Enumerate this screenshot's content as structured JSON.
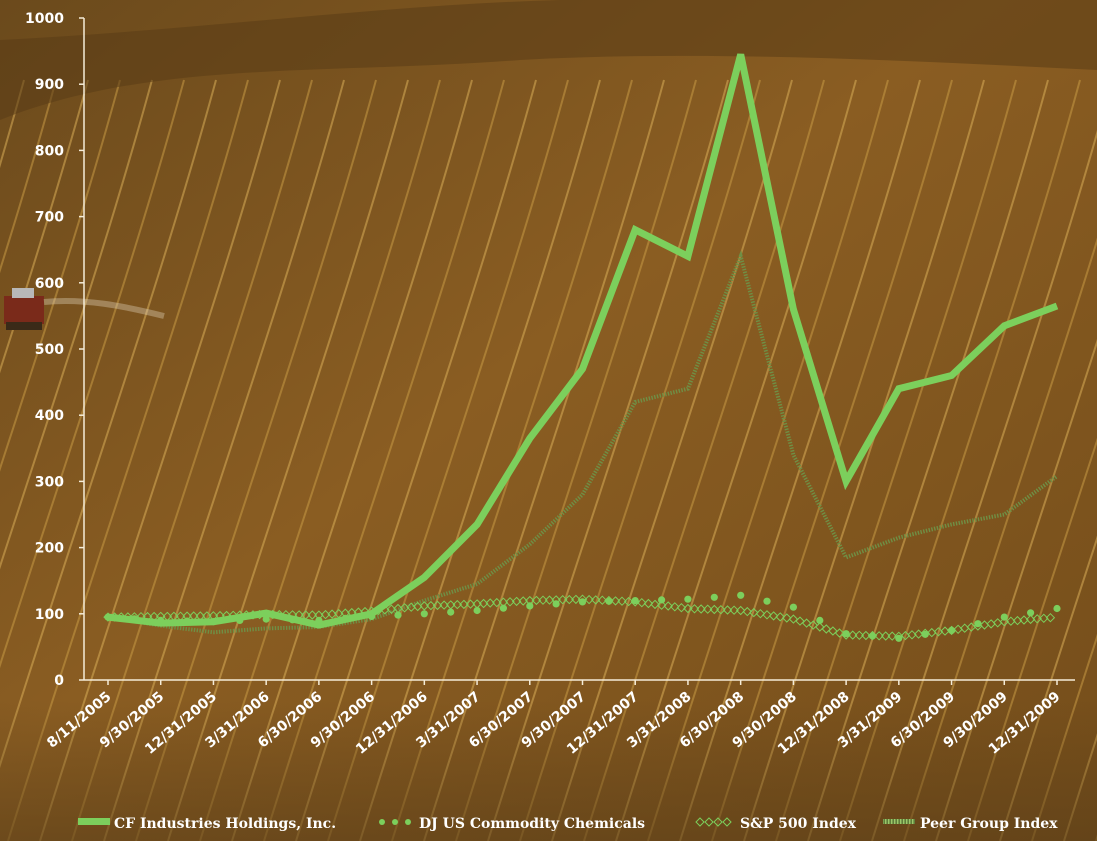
{
  "chart_data": {
    "type": "line",
    "title": "",
    "xlabel": "",
    "ylabel": "",
    "ylim": [
      0,
      1000
    ],
    "yticks": [
      "0",
      "100",
      "200",
      "300",
      "400",
      "500",
      "600",
      "700",
      "800",
      "900",
      "1000"
    ],
    "categories": [
      "8/11/2005",
      "9/30/2005",
      "12/31/2005",
      "3/31/2006",
      "6/30/2006",
      "9/30/2006",
      "12/31/2006",
      "3/31/2007",
      "6/30/2007",
      "9/30/2007",
      "12/31/2007",
      "3/31/2008",
      "6/30/2008",
      "9/30/2008",
      "12/31/2008",
      "3/31/2009",
      "6/30/2009",
      "9/30/2009",
      "12/31/2009"
    ],
    "grid": false,
    "legend_position": "bottom",
    "series": [
      {
        "name": "CF Industries Holdings, Inc.",
        "style": "thick",
        "color": "#7ccf5c",
        "values": [
          95,
          86,
          88,
          101,
          83,
          100,
          155,
          235,
          365,
          470,
          680,
          640,
          945,
          560,
          300,
          440,
          460,
          535,
          565
        ]
      },
      {
        "name": "DJ US Commodity Chemicals",
        "style": "dots",
        "color": "#7ccf5c",
        "values": [
          95,
          90,
          88,
          92,
          90,
          96,
          100,
          105,
          112,
          118,
          120,
          122,
          128,
          110,
          70,
          63,
          75,
          95,
          108
        ]
      },
      {
        "name": "S&P 500 Index",
        "style": "diamonds",
        "color": "#7ccf5c",
        "values": [
          95,
          96,
          97,
          99,
          98,
          104,
          112,
          115,
          120,
          122,
          118,
          108,
          105,
          92,
          68,
          66,
          75,
          88,
          95
        ]
      },
      {
        "name": "Peer Group Index",
        "style": "hatched",
        "color": "#7ea852",
        "values": [
          95,
          82,
          72,
          78,
          80,
          92,
          120,
          145,
          205,
          280,
          420,
          440,
          640,
          340,
          185,
          215,
          235,
          250,
          308
        ]
      }
    ]
  }
}
